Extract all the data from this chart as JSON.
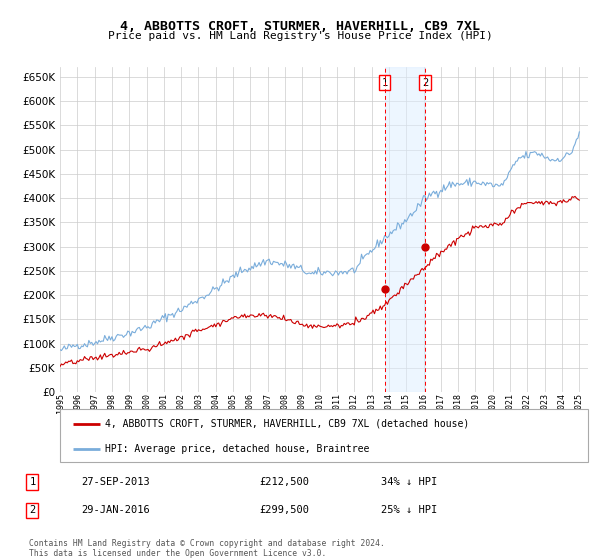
{
  "title": "4, ABBOTTS CROFT, STURMER, HAVERHILL, CB9 7XL",
  "subtitle": "Price paid vs. HM Land Registry's House Price Index (HPI)",
  "ylim": [
    0,
    670000
  ],
  "yticks": [
    0,
    50000,
    100000,
    150000,
    200000,
    250000,
    300000,
    350000,
    400000,
    450000,
    500000,
    550000,
    600000,
    650000
  ],
  "xlim_start": 1995.0,
  "xlim_end": 2025.5,
  "grid_color": "#cccccc",
  "background_color": "#ffffff",
  "hpi_color": "#7aaddb",
  "price_color": "#cc0000",
  "sale1_date": 2013.75,
  "sale1_price": 212500,
  "sale2_date": 2016.08,
  "sale2_price": 299500,
  "annotation_region_color": "#ddeeff",
  "annotation_region_alpha": 0.5,
  "legend_label_red": "4, ABBOTTS CROFT, STURMER, HAVERHILL, CB9 7XL (detached house)",
  "legend_label_blue": "HPI: Average price, detached house, Braintree",
  "footnote": "Contains HM Land Registry data © Crown copyright and database right 2024.\nThis data is licensed under the Open Government Licence v3.0."
}
